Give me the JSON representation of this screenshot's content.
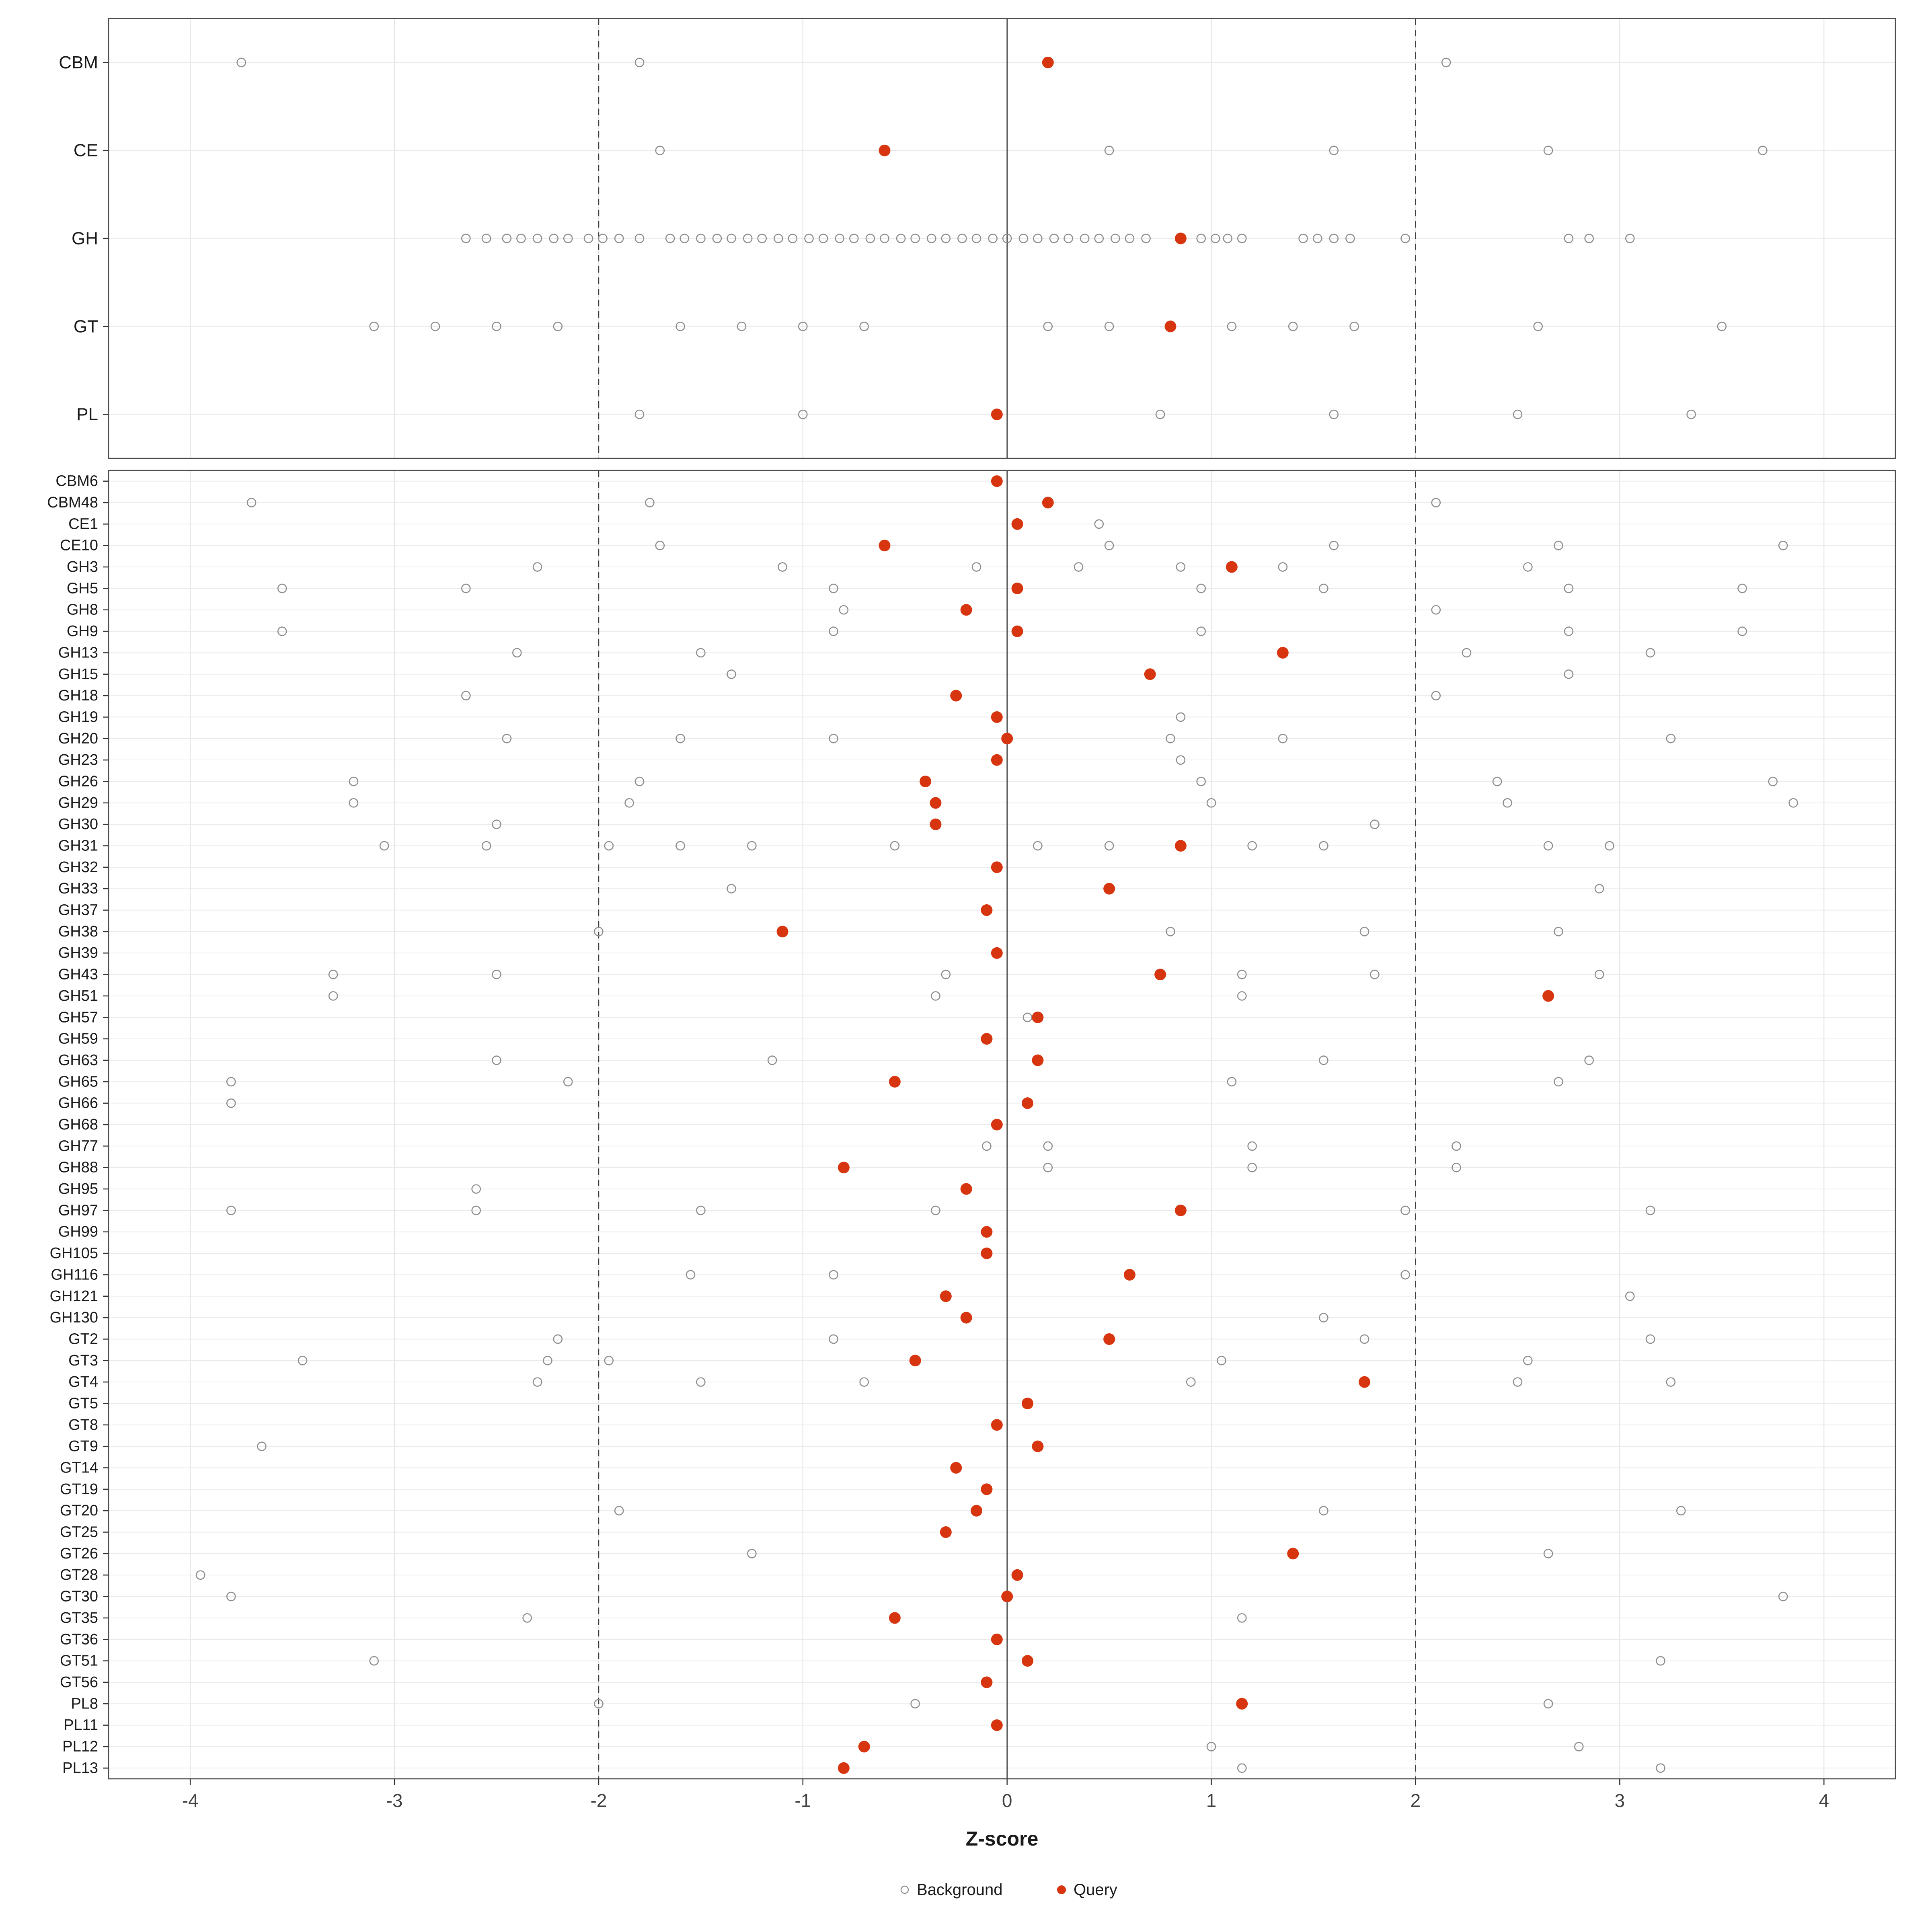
{
  "legend": {
    "background_label": "Background",
    "query_label": "Query"
  },
  "colors": {
    "background_stroke": "#8e8e8e",
    "query_fill": "#d7350f",
    "grid": "#e4e4e4",
    "grid_row": "#e9e9e9",
    "panel_border": "#4d4d4d",
    "ref_line": "#3c3c3c",
    "tick": "#333333"
  },
  "chart_data": {
    "type": "scatter",
    "title": "",
    "xlabel": "Z-score",
    "ylabel": "",
    "xlim": [
      -4.4,
      4.35
    ],
    "x_ticks": [
      -4,
      -3,
      -2,
      -1,
      0,
      1,
      2,
      3,
      4
    ],
    "grid": true,
    "legend_position": "bottom",
    "series_legend": [
      "Background",
      "Query"
    ],
    "reference_lines": {
      "solid": [
        0
      ],
      "dashed": [
        -2,
        2
      ]
    },
    "panels": [
      {
        "name": "class-summary",
        "rows": [
          {
            "label": "CBM",
            "background": [
              -3.75,
              -1.8,
              2.15
            ],
            "query": 0.2
          },
          {
            "label": "CE",
            "background": [
              -1.7,
              0.5,
              1.6,
              2.65,
              3.7
            ],
            "query": -0.6
          },
          {
            "label": "GH",
            "background": [
              -2.65,
              -2.55,
              -2.45,
              -2.38,
              -2.3,
              -2.22,
              -2.15,
              -2.05,
              -1.98,
              -1.9,
              -1.8,
              -1.65,
              -1.58,
              -1.5,
              -1.42,
              -1.35,
              -1.27,
              -1.2,
              -1.12,
              -1.05,
              -0.97,
              -0.9,
              -0.82,
              -0.75,
              -0.67,
              -0.6,
              -0.52,
              -0.45,
              -0.37,
              -0.3,
              -0.22,
              -0.15,
              -0.07,
              0.0,
              0.08,
              0.15,
              0.23,
              0.3,
              0.38,
              0.45,
              0.53,
              0.6,
              0.68,
              0.95,
              1.02,
              1.08,
              1.15,
              1.45,
              1.52,
              1.6,
              1.68,
              1.95,
              2.75,
              2.85,
              3.05
            ],
            "query": 0.85
          },
          {
            "label": "GT",
            "background": [
              -3.1,
              -2.8,
              -2.5,
              -2.2,
              -1.6,
              -1.3,
              -1.0,
              -0.7,
              0.2,
              0.5,
              1.1,
              1.4,
              1.7,
              2.6,
              3.5
            ],
            "query": 0.8
          },
          {
            "label": "PL",
            "background": [
              -1.8,
              -1.0,
              0.75,
              1.6,
              2.5,
              3.35
            ],
            "query": -0.05
          }
        ]
      },
      {
        "name": "family-detail",
        "rows": [
          {
            "label": "CBM6",
            "background": [],
            "query": -0.05
          },
          {
            "label": "CBM48",
            "background": [
              -3.7,
              -1.75,
              2.1
            ],
            "query": 0.2
          },
          {
            "label": "CE1",
            "background": [
              0.45
            ],
            "query": 0.05
          },
          {
            "label": "CE10",
            "background": [
              -1.7,
              0.5,
              1.6,
              2.7,
              3.8
            ],
            "query": -0.6
          },
          {
            "label": "GH3",
            "background": [
              -2.3,
              -1.1,
              -0.15,
              0.35,
              0.85,
              1.35,
              2.55
            ],
            "query": 1.1
          },
          {
            "label": "GH5",
            "background": [
              -3.55,
              -2.65,
              -0.85,
              0.95,
              1.55,
              2.75,
              3.6
            ],
            "query": 0.05
          },
          {
            "label": "GH8",
            "background": [
              -0.8,
              2.1
            ],
            "query": -0.2
          },
          {
            "label": "GH9",
            "background": [
              -3.55,
              -0.85,
              0.95,
              2.75,
              3.6
            ],
            "query": 0.05
          },
          {
            "label": "GH13",
            "background": [
              -2.4,
              -1.5,
              2.25,
              3.15
            ],
            "query": 1.35
          },
          {
            "label": "GH15",
            "background": [
              -1.35,
              2.75
            ],
            "query": 0.7
          },
          {
            "label": "GH18",
            "background": [
              -2.65,
              2.1
            ],
            "query": -0.25
          },
          {
            "label": "GH19",
            "background": [
              0.85
            ],
            "query": -0.05
          },
          {
            "label": "GH20",
            "background": [
              -2.45,
              -1.6,
              -0.85,
              0.8,
              1.35,
              3.25
            ],
            "query": 0.0
          },
          {
            "label": "GH23",
            "background": [
              0.85
            ],
            "query": -0.05
          },
          {
            "label": "GH26",
            "background": [
              -3.2,
              -1.8,
              0.95,
              2.4,
              3.75
            ],
            "query": -0.4
          },
          {
            "label": "GH29",
            "background": [
              -3.2,
              -1.85,
              1.0,
              2.45,
              3.85
            ],
            "query": -0.35
          },
          {
            "label": "GH30",
            "background": [
              -2.5,
              1.8
            ],
            "query": -0.35
          },
          {
            "label": "GH31",
            "background": [
              -3.05,
              -2.55,
              -1.95,
              -1.6,
              -1.25,
              -0.55,
              0.15,
              0.5,
              1.2,
              1.55,
              2.65,
              2.95
            ],
            "query": 0.85
          },
          {
            "label": "GH32",
            "background": [],
            "query": -0.05
          },
          {
            "label": "GH33",
            "background": [
              -1.35,
              2.9
            ],
            "query": 0.5
          },
          {
            "label": "GH37",
            "background": [],
            "query": -0.1
          },
          {
            "label": "GH38",
            "background": [
              -2.0,
              0.8,
              1.75,
              2.7
            ],
            "query": -1.1
          },
          {
            "label": "GH39",
            "background": [],
            "query": -0.05
          },
          {
            "label": "GH43",
            "background": [
              -3.3,
              -2.5,
              -0.3,
              1.15,
              1.8,
              2.9
            ],
            "query": 0.75
          },
          {
            "label": "GH51",
            "background": [
              -3.3,
              -0.35,
              1.15
            ],
            "query": 2.65
          },
          {
            "label": "GH57",
            "background": [
              0.1
            ],
            "query": 0.15
          },
          {
            "label": "GH59",
            "background": [],
            "query": -0.1
          },
          {
            "label": "GH63",
            "background": [
              -2.5,
              -1.15,
              1.55,
              2.85
            ],
            "query": 0.15
          },
          {
            "label": "GH65",
            "background": [
              -3.8,
              -2.15,
              1.1,
              2.7
            ],
            "query": -0.55
          },
          {
            "label": "GH66",
            "background": [
              -3.8
            ],
            "query": 0.1
          },
          {
            "label": "GH68",
            "background": [],
            "query": -0.05
          },
          {
            "label": "GH77",
            "background": [
              -0.1,
              0.2,
              1.2,
              2.2
            ],
            "query": null
          },
          {
            "label": "GH88",
            "background": [
              0.2,
              1.2,
              2.2
            ],
            "query": -0.8
          },
          {
            "label": "GH95",
            "background": [
              -2.6,
              -0.2
            ],
            "query": -0.2
          },
          {
            "label": "GH97",
            "background": [
              -3.8,
              -2.6,
              -1.5,
              -0.35,
              1.95,
              3.15
            ],
            "query": 0.85
          },
          {
            "label": "GH99",
            "background": [],
            "query": -0.1
          },
          {
            "label": "GH105",
            "background": [],
            "query": -0.1
          },
          {
            "label": "GH116",
            "background": [
              -1.55,
              -0.85,
              1.95
            ],
            "query": 0.6
          },
          {
            "label": "GH121",
            "background": [
              3.05
            ],
            "query": -0.3
          },
          {
            "label": "GH130",
            "background": [
              1.55
            ],
            "query": -0.2
          },
          {
            "label": "GT2",
            "background": [
              -2.2,
              -0.85,
              1.75,
              3.15
            ],
            "query": 0.5
          },
          {
            "label": "GT3",
            "background": [
              -3.45,
              -2.25,
              -1.95,
              1.05,
              2.55
            ],
            "query": -0.45
          },
          {
            "label": "GT4",
            "background": [
              -2.3,
              -1.5,
              -0.7,
              0.9,
              2.5,
              3.25
            ],
            "query": 1.75
          },
          {
            "label": "GT5",
            "background": [],
            "query": 0.1
          },
          {
            "label": "GT8",
            "background": [],
            "query": -0.05
          },
          {
            "label": "GT9",
            "background": [
              -3.65
            ],
            "query": 0.15
          },
          {
            "label": "GT14",
            "background": [],
            "query": -0.25
          },
          {
            "label": "GT19",
            "background": [],
            "query": -0.1
          },
          {
            "label": "GT20",
            "background": [
              -1.9,
              1.55,
              3.3
            ],
            "query": -0.15
          },
          {
            "label": "GT25",
            "background": [],
            "query": -0.3
          },
          {
            "label": "GT26",
            "background": [
              -1.25,
              2.65
            ],
            "query": 1.4
          },
          {
            "label": "GT28",
            "background": [
              -3.95
            ],
            "query": 0.05
          },
          {
            "label": "GT30",
            "background": [
              -3.8,
              3.8
            ],
            "query": 0.0
          },
          {
            "label": "GT35",
            "background": [
              -2.35,
              1.15
            ],
            "query": -0.55
          },
          {
            "label": "GT36",
            "background": [],
            "query": -0.05
          },
          {
            "label": "GT51",
            "background": [
              -3.1,
              3.2
            ],
            "query": 0.1
          },
          {
            "label": "GT56",
            "background": [],
            "query": -0.1
          },
          {
            "label": "PL8",
            "background": [
              -2.0,
              -0.45,
              2.65
            ],
            "query": 1.15
          },
          {
            "label": "PL11",
            "background": [],
            "query": -0.05
          },
          {
            "label": "PL12",
            "background": [
              1.0,
              2.8
            ],
            "query": -0.7
          },
          {
            "label": "PL13",
            "background": [
              1.15,
              3.2
            ],
            "query": -0.8
          }
        ]
      }
    ]
  }
}
